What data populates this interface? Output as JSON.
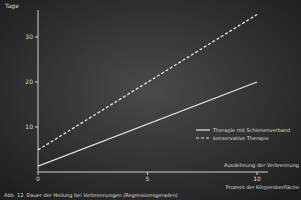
{
  "chart_data": {
    "type": "line",
    "title": "Abb. 12. Dauer der Heilung bei Verbrennungen (Regressionsgeraden)",
    "y_label": "Tage",
    "x_label": "Prozent der Körperoberfläche",
    "annotations": [
      "Ausdehnung der Verbrennung"
    ],
    "x": [
      0,
      10
    ],
    "series": [
      {
        "name": "Therapie mit Schienenverband",
        "color": "#e6e6e6",
        "line_style": "solid",
        "values": [
          1.3,
          20
        ]
      },
      {
        "name": "konservative Therapie",
        "color": "#e6e6e6",
        "line_style": "dashed",
        "values": [
          4.9,
          35
        ]
      }
    ],
    "xlim": [
      0,
      10.5
    ],
    "xticks": [
      0,
      5,
      10
    ],
    "ylim": [
      0,
      36
    ],
    "yticks": [
      10,
      20,
      30
    ],
    "grid": false,
    "legend": "lower right"
  }
}
